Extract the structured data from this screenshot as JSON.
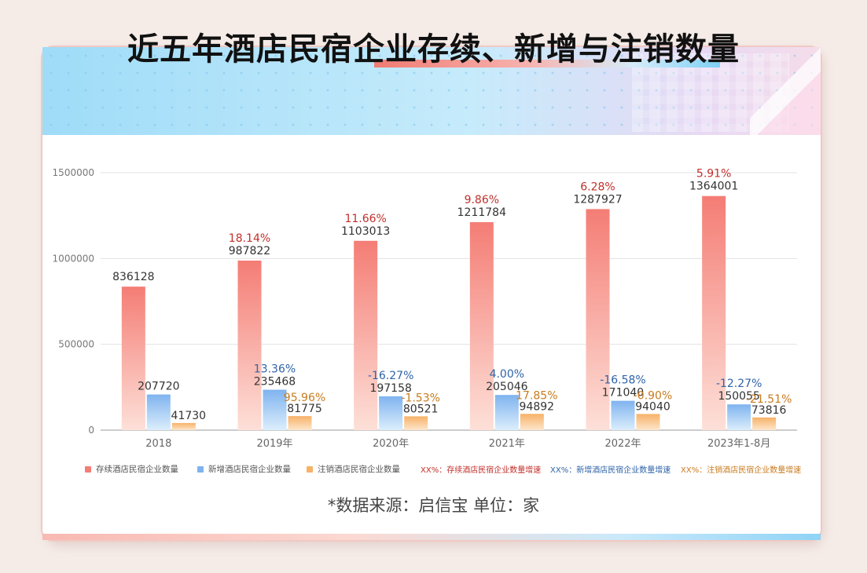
{
  "title": "近五年酒店民宿企业存续、新增与注销数量",
  "source": "*数据来源：启信宝   单位：家",
  "colors": {
    "survival": "#f47d75",
    "survival_light": "#fde0d8",
    "new": "#7fb3ef",
    "new_light": "#dceefc",
    "cancel": "#f7b267",
    "cancel_light": "#fde6cc",
    "survival_growth": "#c0302a",
    "new_growth": "#2f63a8",
    "cancel_growth": "#c87b1e"
  },
  "legend": {
    "survival": "存续酒店民宿企业数量",
    "new": "新增酒店民宿企业数量",
    "cancel": "注销酒店民宿企业数量",
    "survival_growth": "XX%：存续酒店民宿企业数量增速",
    "new_growth": "XX%：新增酒店民宿企业数量增速",
    "cancel_growth": "XX%：注销酒店民宿企业数量增速"
  },
  "chart_data": {
    "type": "bar",
    "categories": [
      "2018",
      "2019年",
      "2020年",
      "2021年",
      "2022年",
      "2023年1-8月"
    ],
    "yticks": [
      "0",
      "500000",
      "1000000",
      "1500000"
    ],
    "ylim": [
      0,
      1500000
    ],
    "grid": true,
    "series": [
      {
        "name": "存续酒店民宿企业数量",
        "values": [
          836128,
          987822,
          1103013,
          1211784,
          1287927,
          1364001
        ],
        "labels": [
          "836128",
          "987822",
          "1103013",
          "1211784",
          "1287927",
          "1364001"
        ],
        "growth": [
          "",
          "18.14%",
          "11.66%",
          "9.86%",
          "6.28%",
          "5.91%"
        ]
      },
      {
        "name": "新增酒店民宿企业数量",
        "values": [
          207720,
          235468,
          197158,
          205046,
          171040,
          150055
        ],
        "labels": [
          "207720",
          "235468",
          "197158",
          "205046",
          "171040",
          "150055"
        ],
        "growth": [
          "",
          "13.36%",
          "-16.27%",
          "4.00%",
          "-16.58%",
          "-12.27%"
        ]
      },
      {
        "name": "注销酒店民宿企业数量",
        "values": [
          41730,
          81775,
          80521,
          94892,
          94040,
          73816
        ],
        "labels": [
          "41730",
          "81775",
          "80521",
          "94892",
          "94040",
          "73816"
        ],
        "growth": [
          "",
          "95.96%",
          "-1.53%",
          "17.85%",
          "-0.90%",
          "-21.51%"
        ]
      }
    ]
  }
}
